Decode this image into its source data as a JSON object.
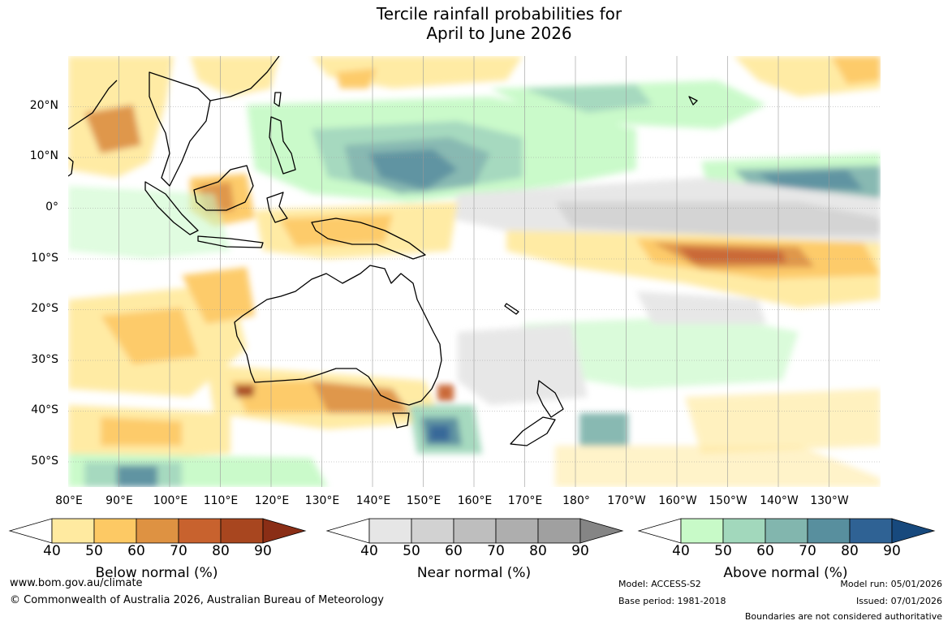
{
  "title": {
    "line1": "Tercile rainfall probabilities for",
    "line2": "April to June 2026"
  },
  "lat_labels": [
    "20°N",
    "10°N",
    "0°",
    "10°S",
    "20°S",
    "30°S",
    "40°S",
    "50°S"
  ],
  "lon_labels": [
    "80°E",
    "90°E",
    "100°E",
    "110°E",
    "120°E",
    "130°E",
    "140°E",
    "150°E",
    "160°E",
    "170°E",
    "180°",
    "170°W",
    "160°W",
    "150°W",
    "140°W",
    "130°W"
  ],
  "colorbars": [
    {
      "label": "Below normal (%)",
      "ticks": [
        "40",
        "50",
        "60",
        "70",
        "80",
        "90"
      ],
      "colors": [
        "#ffffff",
        "#ffeaa0",
        "#fdc964",
        "#de9242",
        "#c8622e",
        "#a8461f",
        "#8a2e16"
      ]
    },
    {
      "label": "Near normal (%)",
      "ticks": [
        "40",
        "50",
        "60",
        "70",
        "80",
        "90"
      ],
      "colors": [
        "#ffffff",
        "#e6e6e6",
        "#d2d2d2",
        "#bebebe",
        "#aeaeae",
        "#a0a0a0",
        "#858585"
      ]
    },
    {
      "label": "Above normal (%)",
      "ticks": [
        "40",
        "50",
        "60",
        "70",
        "80",
        "90"
      ],
      "colors": [
        "#ffffff",
        "#c8fac8",
        "#a2d8bc",
        "#82b6ae",
        "#588f9e",
        "#2f6294",
        "#17497d"
      ]
    }
  ],
  "footer": {
    "website": "www.bom.gov.au/climate",
    "copyright": "© Commonwealth of Australia 2026, Australian Bureau of Meteorology",
    "model": "Model: ACCESS-S2",
    "base_period": "Base period: 1981-2018",
    "model_run": "Model run: 05/01/2026",
    "issued": "Issued: 07/01/2026",
    "disclaimer": "Boundaries are not considered authoritative"
  }
}
